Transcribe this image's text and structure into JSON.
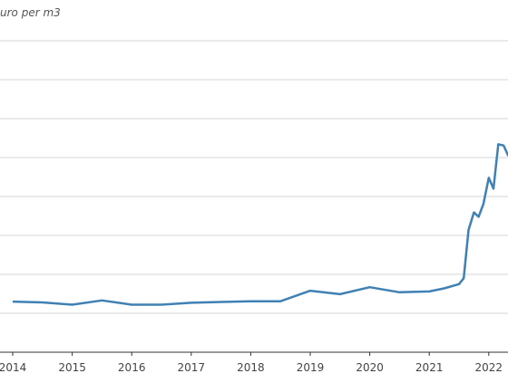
{
  "chart_data": {
    "type": "line",
    "unit_label": "uro per m3",
    "x_tick_labels": [
      "2014",
      "2015",
      "2016",
      "2017",
      "2018",
      "2019",
      "2020",
      "2021",
      "2022"
    ],
    "x_ticks": [
      2014,
      2015,
      2016,
      2017,
      2018,
      2019,
      2020,
      2021,
      2022
    ],
    "xlim": [
      2014.0,
      2022.4
    ],
    "ylim": [
      0,
      8
    ],
    "y_grid": [
      1,
      2,
      3,
      4,
      5,
      6,
      7,
      8
    ],
    "grid": true,
    "series": [
      {
        "color": "#3f81b4",
        "points": [
          [
            2014.0,
            1.3
          ],
          [
            2014.5,
            1.28
          ],
          [
            2015.0,
            1.22
          ],
          [
            2015.5,
            1.33
          ],
          [
            2016.0,
            1.22
          ],
          [
            2016.5,
            1.22
          ],
          [
            2017.0,
            1.27
          ],
          [
            2017.5,
            1.29
          ],
          [
            2018.0,
            1.31
          ],
          [
            2018.5,
            1.31
          ],
          [
            2019.0,
            1.58
          ],
          [
            2019.5,
            1.49
          ],
          [
            2020.0,
            1.67
          ],
          [
            2020.5,
            1.54
          ],
          [
            2021.0,
            1.56
          ],
          [
            2021.25,
            1.64
          ],
          [
            2021.5,
            1.75
          ],
          [
            2021.58,
            1.9
          ],
          [
            2021.66,
            3.14
          ],
          [
            2021.75,
            3.59
          ],
          [
            2021.83,
            3.48
          ],
          [
            2021.91,
            3.81
          ],
          [
            2022.0,
            4.48
          ],
          [
            2022.08,
            4.2
          ],
          [
            2022.16,
            5.34
          ],
          [
            2022.25,
            5.31
          ],
          [
            2022.33,
            5.04
          ]
        ]
      }
    ]
  }
}
